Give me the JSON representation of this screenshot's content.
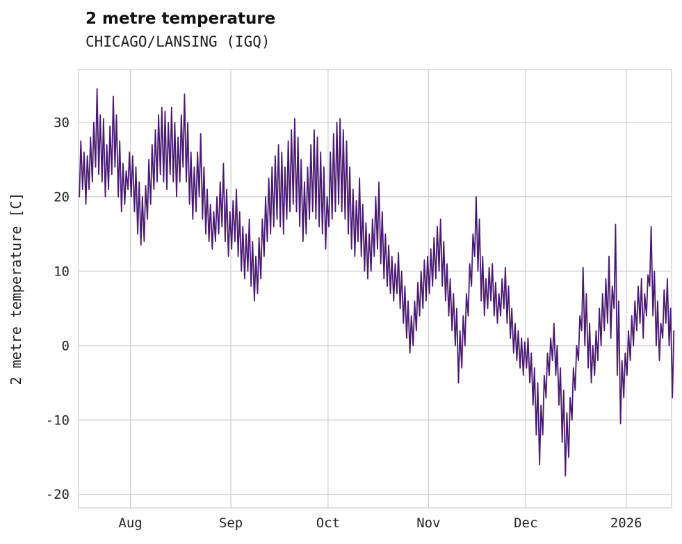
{
  "header": {
    "title": "2 metre temperature",
    "subtitle": "CHICAGO/LANSING (IGQ)"
  },
  "chart_data": {
    "type": "line",
    "title": "2 metre temperature",
    "subtitle": "CHICAGO/LANSING (IGQ)",
    "xlabel": "",
    "ylabel": "2 metre temperature [C]",
    "grid": true,
    "legend": "none",
    "line_color": "#4a1a72",
    "grid_color": "#cccccc",
    "tick_label_color": "#222222",
    "ylim": [
      -21.8,
      37.1
    ],
    "yticks": [
      -20,
      -10,
      0,
      10,
      20,
      30
    ],
    "x_tick_labels": [
      "Aug",
      "Sep",
      "Oct",
      "Nov",
      "Dec",
      "2026"
    ],
    "x_tick_days": [
      16,
      47,
      77,
      108,
      138,
      169
    ],
    "x_range_days": [
      0,
      183
    ],
    "series": [
      {
        "name": "2 metre temperature",
        "sampling": "daily minimum and maximum, day 0 = mid-July, day 183 = mid-January",
        "daily_min": [
          20,
          21,
          19,
          21,
          22,
          24,
          23,
          22,
          20,
          21,
          23,
          24,
          20,
          18,
          19,
          21,
          20,
          18,
          15,
          13.5,
          14,
          17,
          19,
          21,
          22,
          23,
          22,
          21,
          23,
          22,
          20,
          22,
          24,
          22,
          19,
          17,
          18,
          20,
          17,
          15,
          14,
          13,
          14,
          15,
          16,
          14,
          12,
          13,
          14,
          12,
          10,
          9,
          10,
          8,
          6,
          7,
          9,
          12,
          14,
          15,
          16,
          17,
          16,
          15,
          17,
          18,
          19,
          18,
          16,
          14,
          15,
          17,
          18,
          17,
          16,
          15,
          13,
          16,
          17,
          18,
          19,
          18,
          17,
          15,
          13,
          12,
          14,
          12,
          10,
          9,
          10,
          12,
          13,
          11,
          9,
          8,
          7,
          6,
          7,
          5,
          3,
          1,
          -1,
          0,
          2,
          4,
          5,
          6,
          7,
          8,
          9,
          10,
          8,
          6,
          4,
          2,
          0,
          -5,
          -3,
          0,
          4,
          8,
          12,
          10,
          6,
          4,
          5,
          6,
          4,
          3,
          4,
          5,
          3,
          1,
          -1,
          -2,
          -3,
          -4,
          -3,
          -5,
          -8,
          -12,
          -16,
          -12,
          -7,
          -4,
          -2,
          -4,
          -8,
          -13,
          -17.5,
          -15,
          -10,
          -6,
          -2,
          2,
          0,
          -3,
          -5,
          -4,
          -2,
          0,
          2,
          3,
          1,
          5,
          -4,
          -10.5,
          -7,
          -4,
          -2,
          0,
          2,
          3,
          1,
          4,
          8,
          4,
          0,
          -2,
          1,
          3,
          0,
          -7
        ],
        "daily_max": [
          27.5,
          26,
          25.5,
          28,
          30,
          34.5,
          31,
          30.5,
          27,
          29.5,
          33.5,
          31,
          27.5,
          24.5,
          23.5,
          26,
          25.5,
          24,
          22,
          20,
          21.5,
          25,
          27,
          29,
          31,
          32,
          31.5,
          30,
          32,
          30,
          28,
          31,
          33.8,
          30,
          26,
          24,
          26,
          28.5,
          24,
          21,
          19,
          18,
          20,
          22,
          24.5,
          21,
          18,
          19.5,
          21,
          18,
          16,
          15,
          17,
          14,
          12,
          14.5,
          17,
          20,
          22.5,
          24,
          25.5,
          27,
          26,
          24,
          27.5,
          29,
          30.5,
          28,
          25,
          22,
          24,
          27,
          29,
          28,
          26,
          24,
          20,
          26,
          28.5,
          30,
          30.5,
          29,
          27.5,
          24,
          21,
          19.5,
          22.5,
          19,
          16.5,
          15,
          17,
          20,
          22,
          18,
          15,
          13.5,
          12,
          11,
          12.5,
          10,
          8,
          6,
          4,
          6,
          8.5,
          10,
          11.5,
          12,
          13,
          14.5,
          16,
          17,
          14,
          11,
          9,
          7,
          5,
          2,
          4,
          7,
          11,
          15,
          20,
          17,
          12,
          9,
          10.5,
          11,
          8.5,
          7,
          9,
          10.5,
          8,
          5,
          3,
          2,
          1,
          0.5,
          1,
          -1,
          -3,
          -5,
          -8,
          -4,
          -1,
          1,
          3,
          0,
          -3,
          -6,
          -9,
          -7,
          -3,
          0,
          4,
          10.5,
          7,
          3,
          0,
          2,
          5,
          7,
          9,
          12,
          8,
          16.3,
          6,
          -2,
          -1,
          2,
          4,
          6,
          8,
          9,
          7,
          9.5,
          16,
          10,
          6,
          3,
          7.5,
          9,
          5,
          2
        ]
      }
    ]
  }
}
